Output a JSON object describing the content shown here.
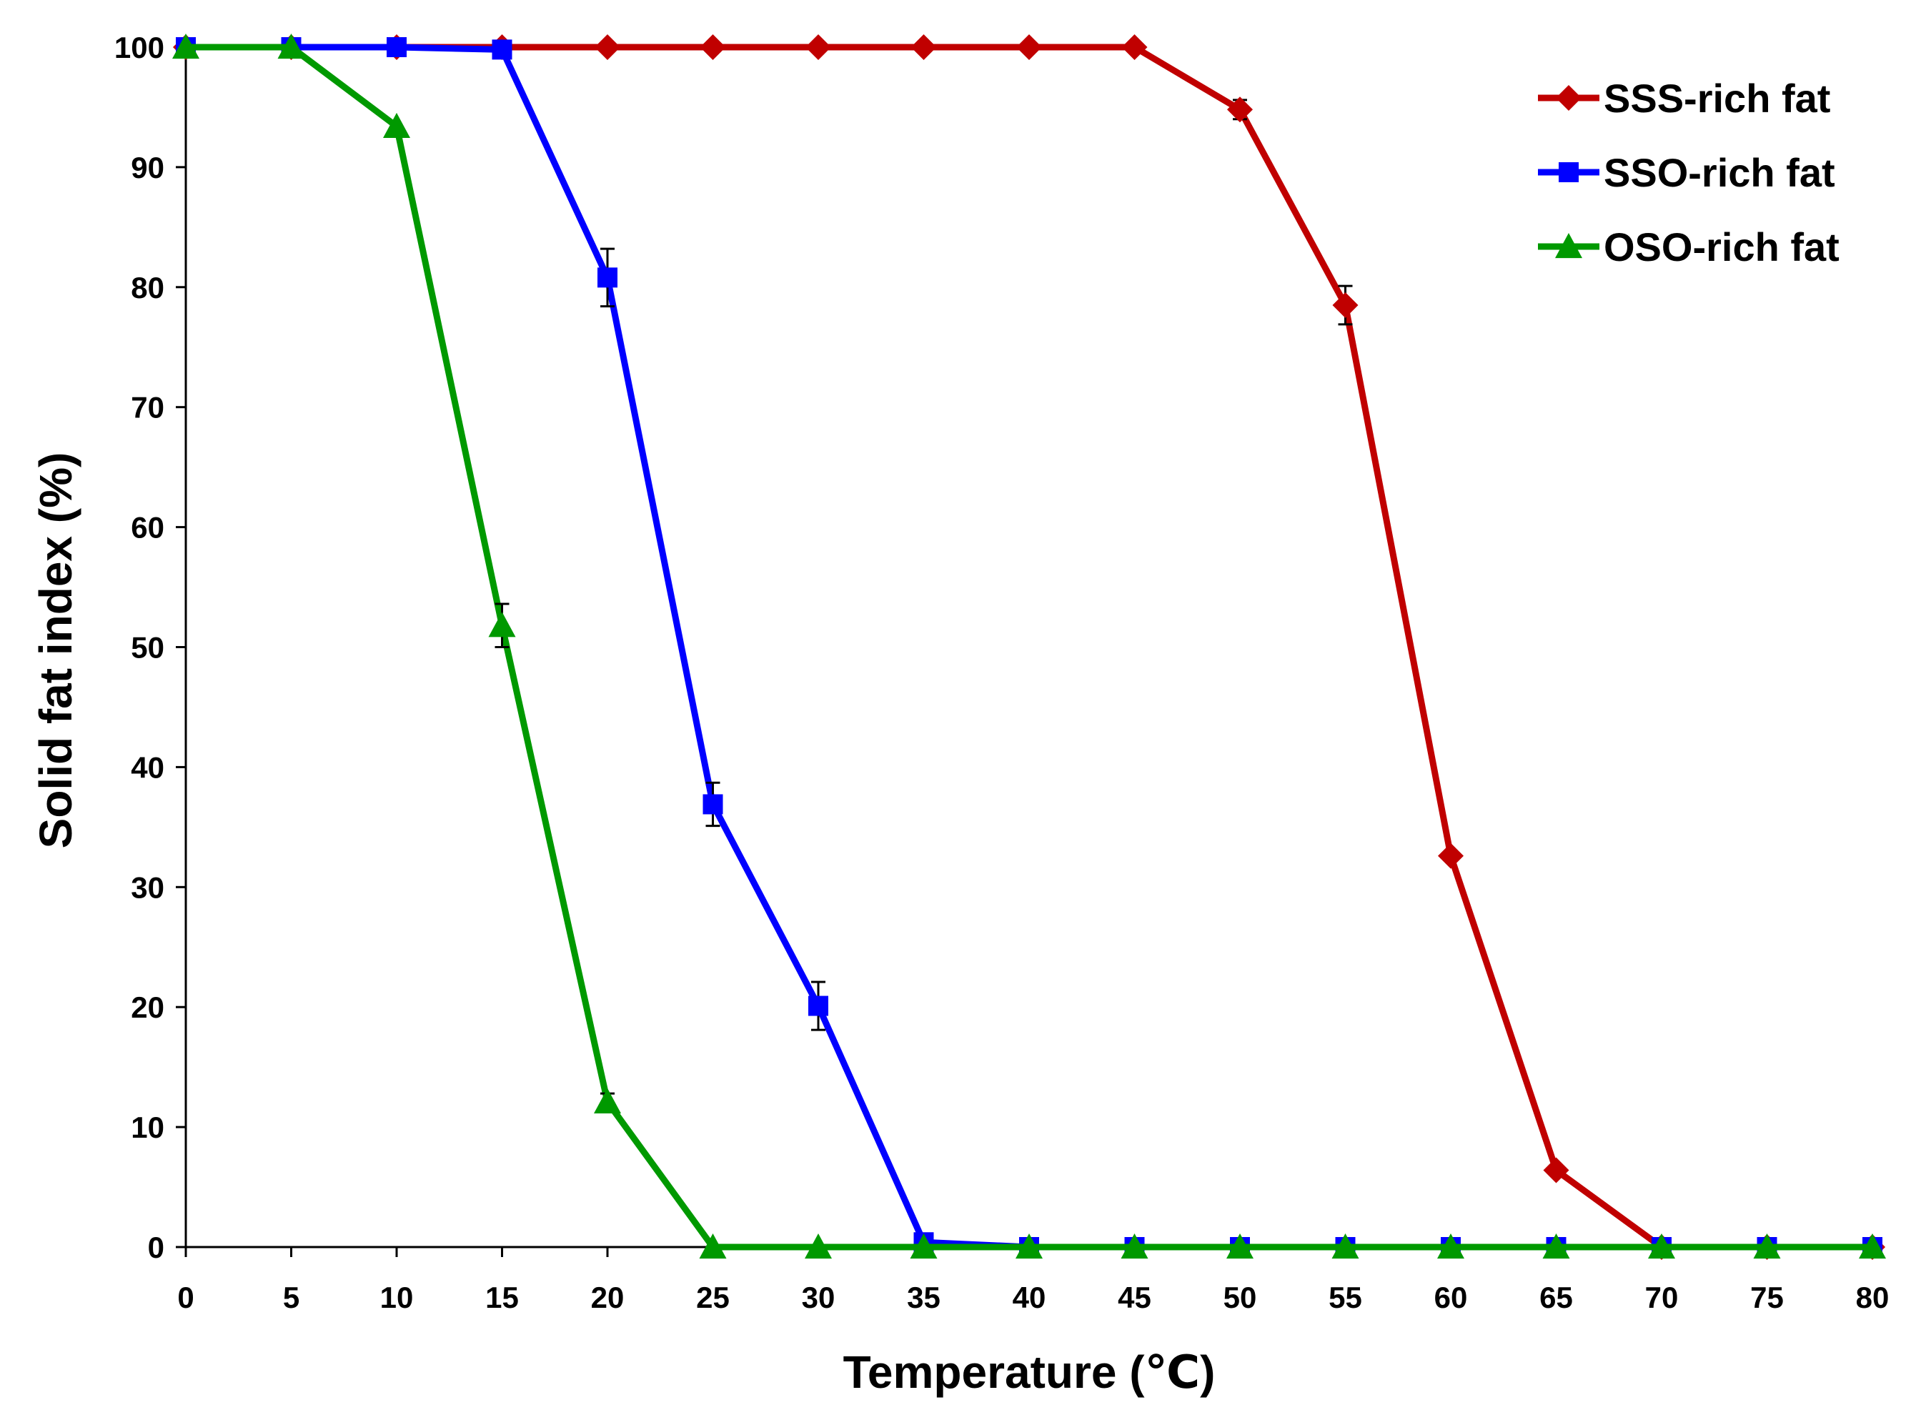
{
  "chart_data": {
    "type": "line",
    "title": "",
    "xlabel": "Temperature (℃)",
    "ylabel": "Solid fat index (%)",
    "xlim": [
      0,
      80
    ],
    "ylim": [
      0,
      100
    ],
    "x_ticks": [
      0,
      5,
      10,
      15,
      20,
      25,
      30,
      35,
      40,
      45,
      50,
      55,
      60,
      65,
      70,
      75,
      80
    ],
    "y_ticks": [
      0,
      10,
      20,
      30,
      40,
      50,
      60,
      70,
      80,
      90,
      100
    ],
    "x_tick_labels": [
      "0",
      "5",
      "10",
      "15",
      "20",
      "25",
      "30",
      "35",
      "40",
      "45",
      "50",
      "55",
      "60",
      "65",
      "70",
      "75",
      "80"
    ],
    "y_tick_labels": [
      "0",
      "10",
      "20",
      "30",
      "40",
      "50",
      "60",
      "70",
      "80",
      "90",
      "100"
    ],
    "grid": false,
    "legend_position": "top-right",
    "x": [
      0,
      5,
      10,
      15,
      20,
      25,
      30,
      35,
      40,
      45,
      50,
      55,
      60,
      65,
      70,
      75,
      80
    ],
    "series": [
      {
        "name": "SSS-rich fat",
        "color": "#c00000",
        "marker": "diamond",
        "values": [
          100,
          100,
          100,
          100,
          100,
          100,
          100,
          100,
          100,
          100,
          94.8,
          78.5,
          32.6,
          6.4,
          0,
          0,
          0
        ],
        "errors": [
          0,
          0,
          0,
          0,
          0,
          0,
          0,
          0,
          0,
          0,
          0.8,
          1.6,
          0,
          0,
          0,
          0,
          0
        ]
      },
      {
        "name": "SSO-rich fat",
        "color": "#0000ff",
        "marker": "square",
        "values": [
          100,
          100,
          100,
          99.8,
          80.8,
          36.9,
          20.1,
          0.4,
          0,
          0,
          0,
          0,
          0,
          0,
          0,
          0,
          0
        ],
        "errors": [
          0,
          0,
          0,
          0,
          2.4,
          1.8,
          2.0,
          0,
          0,
          0,
          0,
          0,
          0,
          0,
          0,
          0,
          0
        ]
      },
      {
        "name": "OSO-rich fat",
        "color": "#009900",
        "marker": "triangle",
        "values": [
          100,
          100,
          93.4,
          51.8,
          12.1,
          0,
          0,
          0,
          0,
          0,
          0,
          0,
          0,
          0,
          0,
          0,
          0
        ],
        "errors": [
          0,
          0,
          0,
          1.8,
          0.7,
          0,
          0,
          0,
          0,
          0,
          0,
          0,
          0,
          0,
          0,
          0,
          0
        ]
      }
    ]
  }
}
